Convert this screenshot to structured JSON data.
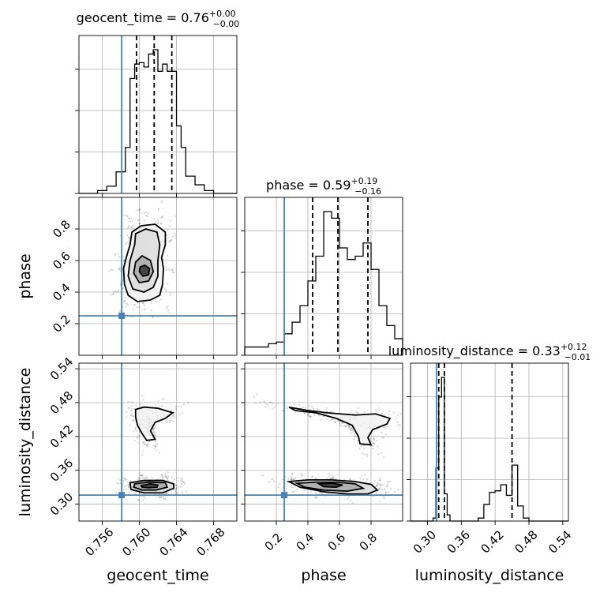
{
  "chart_data": {
    "type": "corner",
    "parameters": [
      "geocent_time",
      "phase",
      "luminosity_distance"
    ],
    "colors": {
      "truth": "#4682b4",
      "hist": "#000000",
      "grid": "#b0b0b0"
    },
    "titles": [
      {
        "param": "geocent_time",
        "label": "geocent_time = 0.76",
        "plus": "+0.00",
        "minus": "−0.00"
      },
      {
        "param": "phase",
        "label": "phase = 0.59",
        "plus": "+0.19",
        "minus": "−0.16"
      },
      {
        "param": "luminosity_distance",
        "label": "luminosity_distance = 0.33",
        "plus": "+0.12",
        "minus": "−0.01"
      }
    ],
    "ranges": {
      "geocent_time": [
        0.7535,
        0.7705
      ],
      "phase": [
        0.0,
        1.0
      ],
      "luminosity_distance": [
        0.27,
        0.55
      ]
    },
    "ticks": {
      "geocent_time": {
        "values": [
          0.756,
          0.76,
          0.764,
          0.768
        ],
        "labels": [
          "0.756",
          "0.760",
          "0.764",
          "0.768"
        ]
      },
      "phase": {
        "values": [
          0.2,
          0.4,
          0.6,
          0.8
        ],
        "labels": [
          "0.2",
          "0.4",
          "0.6",
          "0.8"
        ]
      },
      "luminosity_distance": {
        "values": [
          0.3,
          0.36,
          0.42,
          0.48,
          0.54
        ],
        "labels": [
          "0.30",
          "0.36",
          "0.42",
          "0.48",
          "0.54"
        ]
      }
    },
    "axis_labels": {
      "x": [
        "geocent_time",
        "phase",
        "luminosity_distance"
      ],
      "y": [
        "phase",
        "luminosity_distance"
      ]
    },
    "truths": {
      "geocent_time": 0.7581,
      "phase": 0.25,
      "luminosity_distance": 0.316
    },
    "quantile_lines": {
      "geocent_time": [
        0.7597,
        0.7616,
        0.7635
      ],
      "phase": [
        0.43,
        0.59,
        0.78
      ],
      "luminosity_distance": [
        0.32,
        0.33,
        0.45
      ]
    },
    "histograms": {
      "geocent_time": {
        "edges": [
          0.7535,
          0.7555,
          0.7565,
          0.7575,
          0.7585,
          0.759,
          0.7595,
          0.76,
          0.7605,
          0.761,
          0.7615,
          0.762,
          0.7625,
          0.763,
          0.764,
          0.7645,
          0.765,
          0.766,
          0.767,
          0.768,
          0.7705
        ],
        "counts": [
          0.0,
          0.02,
          0.05,
          0.15,
          0.32,
          0.8,
          0.9,
          0.91,
          0.88,
          0.97,
          1.0,
          0.85,
          0.9,
          0.85,
          0.47,
          0.32,
          0.12,
          0.06,
          0.02,
          0.0
        ]
      },
      "phase": {
        "edges": [
          0.0,
          0.05,
          0.1,
          0.15,
          0.2,
          0.25,
          0.3,
          0.35,
          0.4,
          0.45,
          0.5,
          0.55,
          0.6,
          0.65,
          0.7,
          0.75,
          0.8,
          0.85,
          0.9,
          0.95,
          1.0
        ],
        "counts": [
          0.05,
          0.05,
          0.05,
          0.07,
          0.08,
          0.13,
          0.2,
          0.3,
          0.45,
          0.6,
          0.87,
          0.83,
          0.65,
          0.58,
          0.6,
          0.68,
          0.52,
          0.3,
          0.18,
          0.1
        ]
      },
      "luminosity_distance": {
        "edges": [
          0.27,
          0.31,
          0.315,
          0.32,
          0.325,
          0.33,
          0.335,
          0.34,
          0.39,
          0.4,
          0.41,
          0.42,
          0.43,
          0.44,
          0.45,
          0.46,
          0.47,
          0.48,
          0.55
        ],
        "counts": [
          0.0,
          0.02,
          0.35,
          0.82,
          0.95,
          0.18,
          0.04,
          0.0,
          0.02,
          0.11,
          0.19,
          0.2,
          0.24,
          0.17,
          0.37,
          0.1,
          0.02,
          0.0
        ]
      }
    },
    "joint_2d": [
      {
        "x": "geocent_time",
        "y": "phase",
        "contours": [
          {
            "level": 1,
            "points": [
              [
                0.7584,
                0.45
              ],
              [
                0.7588,
                0.38
              ],
              [
                0.7598,
                0.34
              ],
              [
                0.7612,
                0.35
              ],
              [
                0.7622,
                0.38
              ],
              [
                0.7625,
                0.45
              ],
              [
                0.7626,
                0.55
              ],
              [
                0.7624,
                0.62
              ],
              [
                0.7628,
                0.7
              ],
              [
                0.7628,
                0.78
              ],
              [
                0.7617,
                0.83
              ],
              [
                0.7602,
                0.82
              ],
              [
                0.7592,
                0.78
              ],
              [
                0.759,
                0.7
              ],
              [
                0.7586,
                0.62
              ],
              [
                0.7583,
                0.55
              ]
            ]
          },
          {
            "level": 2,
            "points": [
              [
                0.7588,
                0.5
              ],
              [
                0.7593,
                0.42
              ],
              [
                0.7605,
                0.4
              ],
              [
                0.7615,
                0.43
              ],
              [
                0.762,
                0.5
              ],
              [
                0.762,
                0.6
              ],
              [
                0.7622,
                0.7
              ],
              [
                0.7619,
                0.78
              ],
              [
                0.7607,
                0.8
              ],
              [
                0.7596,
                0.77
              ],
              [
                0.7595,
                0.7
              ],
              [
                0.759,
                0.6
              ]
            ]
          },
          {
            "level": 3,
            "points": [
              [
                0.7594,
                0.52
              ],
              [
                0.76,
                0.46
              ],
              [
                0.761,
                0.47
              ],
              [
                0.7615,
                0.53
              ],
              [
                0.7612,
                0.6
              ],
              [
                0.7603,
                0.63
              ],
              [
                0.7596,
                0.59
              ]
            ]
          },
          {
            "level": 4,
            "points": [
              [
                0.76,
                0.53
              ],
              [
                0.7604,
                0.5
              ],
              [
                0.761,
                0.51
              ],
              [
                0.7611,
                0.55
              ],
              [
                0.7606,
                0.57
              ],
              [
                0.7601,
                0.56
              ]
            ]
          }
        ]
      },
      {
        "x": "geocent_time",
        "y": "luminosity_distance",
        "contours": [
          {
            "level": 1,
            "points": [
              [
                0.7596,
                0.468
              ],
              [
                0.7605,
                0.472
              ],
              [
                0.762,
                0.47
              ],
              [
                0.7636,
                0.462
              ],
              [
                0.7628,
                0.452
              ],
              [
                0.7617,
                0.445
              ],
              [
                0.7612,
                0.43
              ],
              [
                0.7617,
                0.415
              ],
              [
                0.7608,
                0.413
              ],
              [
                0.7603,
                0.425
              ],
              [
                0.7598,
                0.44
              ],
              [
                0.7596,
                0.455
              ]
            ]
          },
          {
            "level": 2,
            "points": [
              [
                0.759,
                0.338
              ],
              [
                0.7605,
                0.342
              ],
              [
                0.7625,
                0.342
              ],
              [
                0.7637,
                0.336
              ],
              [
                0.7637,
                0.328
              ],
              [
                0.7625,
                0.32
              ],
              [
                0.7605,
                0.32
              ],
              [
                0.7591,
                0.326
              ]
            ]
          },
          {
            "level": 3,
            "points": [
              [
                0.7595,
                0.336
              ],
              [
                0.761,
                0.339
              ],
              [
                0.7628,
                0.338
              ],
              [
                0.763,
                0.33
              ],
              [
                0.7618,
                0.325
              ],
              [
                0.7603,
                0.325
              ],
              [
                0.7594,
                0.33
              ]
            ]
          },
          {
            "level": 4,
            "points": [
              [
                0.7602,
                0.333
              ],
              [
                0.7612,
                0.336
              ],
              [
                0.762,
                0.334
              ],
              [
                0.7619,
                0.33
              ],
              [
                0.761,
                0.329
              ],
              [
                0.7603,
                0.33
              ]
            ]
          }
        ]
      },
      {
        "x": "phase",
        "y": "luminosity_distance",
        "contours": [
          {
            "level": 1,
            "points": [
              [
                0.28,
                0.472
              ],
              [
                0.4,
                0.466
              ],
              [
                0.52,
                0.462
              ],
              [
                0.7,
                0.458
              ],
              [
                0.83,
                0.46
              ],
              [
                0.92,
                0.452
              ],
              [
                0.9,
                0.442
              ],
              [
                0.81,
                0.432
              ],
              [
                0.78,
                0.418
              ],
              [
                0.8,
                0.405
              ],
              [
                0.73,
                0.407
              ],
              [
                0.72,
                0.42
              ],
              [
                0.68,
                0.44
              ],
              [
                0.58,
                0.452
              ],
              [
                0.45,
                0.462
              ],
              [
                0.32,
                0.466
              ]
            ]
          },
          {
            "level": 2,
            "points": [
              [
                0.28,
                0.34
              ],
              [
                0.4,
                0.343
              ],
              [
                0.55,
                0.343
              ],
              [
                0.7,
                0.34
              ],
              [
                0.8,
                0.335
              ],
              [
                0.84,
                0.325
              ],
              [
                0.78,
                0.318
              ],
              [
                0.65,
                0.318
              ],
              [
                0.5,
                0.322
              ],
              [
                0.35,
                0.33
              ]
            ]
          },
          {
            "level": 3,
            "points": [
              [
                0.33,
                0.337
              ],
              [
                0.45,
                0.339
              ],
              [
                0.58,
                0.339
              ],
              [
                0.7,
                0.336
              ],
              [
                0.75,
                0.328
              ],
              [
                0.65,
                0.323
              ],
              [
                0.5,
                0.325
              ],
              [
                0.38,
                0.33
              ]
            ]
          },
          {
            "level": 4,
            "points": [
              [
                0.47,
                0.336
              ],
              [
                0.55,
                0.337
              ],
              [
                0.62,
                0.334
              ],
              [
                0.58,
                0.33
              ],
              [
                0.5,
                0.331
              ]
            ]
          }
        ]
      }
    ]
  }
}
